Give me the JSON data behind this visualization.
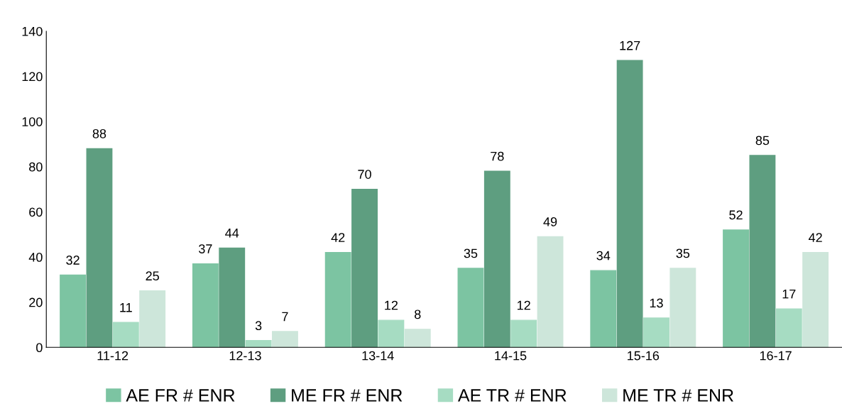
{
  "chart_data": {
    "type": "bar",
    "categories": [
      "11-12",
      "12-13",
      "13-14",
      "14-15",
      "15-16",
      "16-17"
    ],
    "series": [
      {
        "name": "AE FR # ENR",
        "color": "#7cc4a2",
        "values": [
          32,
          37,
          42,
          35,
          34,
          52
        ]
      },
      {
        "name": "ME FR # ENR",
        "color": "#5e9e80",
        "values": [
          88,
          44,
          70,
          78,
          127,
          85
        ]
      },
      {
        "name": "AE TR # ENR",
        "color": "#a6dcc2",
        "values": [
          11,
          3,
          12,
          12,
          13,
          17
        ]
      },
      {
        "name": "ME TR # ENR",
        "color": "#cde6da",
        "values": [
          25,
          7,
          8,
          49,
          35,
          42
        ]
      }
    ],
    "ylim": [
      0,
      140
    ],
    "yticks": [
      0,
      20,
      40,
      60,
      80,
      100,
      120,
      140
    ],
    "data_labels": true,
    "grid": false,
    "legend": "bottom"
  }
}
